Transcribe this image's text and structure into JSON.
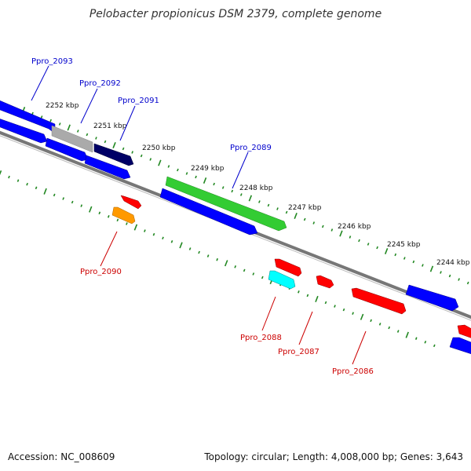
{
  "title": "Pelobacter propionicus DSM 2379, complete genome",
  "footer": {
    "accession": "Accession: NC_008609",
    "summary": "Topology: circular; Length: 4,008,000 bp; Genes: 3,643"
  },
  "ticks": [
    "2252 kbp",
    "2251 kbp",
    "2250 kbp",
    "2249 kbp",
    "2248 kbp",
    "2247 kbp",
    "2246 kbp",
    "2245 kbp",
    "2244 kbp"
  ],
  "labels": {
    "forward": [
      "Ppro_2093",
      "Ppro_2092",
      "Ppro_2091",
      "Ppro_2089"
    ],
    "reverse": [
      "Ppro_2090",
      "Ppro_2088",
      "Ppro_2087",
      "Ppro_2086"
    ]
  },
  "colors": {
    "forward_label": "#0000cc",
    "reverse_label": "#cc0000",
    "cds_forward": "#0000ff",
    "cds_reverse": "#ff0000",
    "highlight_green": "#33cc33",
    "highlight_gray": "#aaaaaa",
    "highlight_navy": "#000066",
    "highlight_orange": "#ff9900",
    "highlight_cyan": "#00ffff",
    "backbone": "#777777",
    "tick": "#228822"
  }
}
